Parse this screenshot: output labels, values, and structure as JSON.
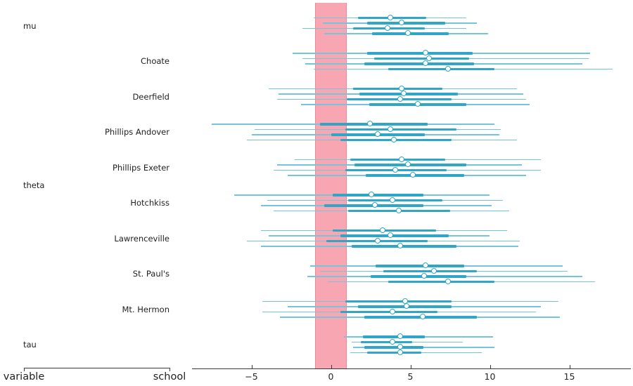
{
  "figure": {
    "background": "#ffffff"
  },
  "colors": {
    "hdi_line": "#74c5db",
    "iqr_line": "#2fa6c8",
    "median_marker_fill": "#ffffff",
    "median_marker_edge": "#2fa6c8",
    "rope_band": "#f7a6b2",
    "axis_line": "#3a3a3a",
    "text": "#1f1f1f"
  },
  "x_axis": {
    "range": [
      -8.7,
      18.9
    ],
    "ticks": [
      {
        "value": -5,
        "label": "−5"
      },
      {
        "value": 0,
        "label": "0"
      },
      {
        "value": 5,
        "label": "5"
      },
      {
        "value": 10,
        "label": "10"
      },
      {
        "value": 15,
        "label": "15"
      }
    ]
  },
  "category_axis": {
    "level1_label": "variable",
    "level2_label": "school"
  },
  "chart_data": {
    "type": "forest",
    "title": "",
    "rope": [
      -1,
      1
    ],
    "num_chains": 4,
    "interval_stats": [
      "interval_lo",
      "q1",
      "median",
      "q3",
      "interval_hi"
    ],
    "variables": [
      {
        "variable": "mu",
        "rows": [
          {
            "school": "",
            "chains": [
              [
                -1.1,
                1.7,
                3.8,
                6.0,
                8.5
              ],
              [
                -0.5,
                2.3,
                4.5,
                7.2,
                9.2
              ],
              [
                -1.8,
                1.4,
                3.6,
                5.9,
                8.5
              ],
              [
                -0.4,
                2.6,
                4.9,
                7.4,
                9.9
              ]
            ]
          }
        ]
      },
      {
        "variable": "theta",
        "rows": [
          {
            "school": "Choate",
            "chains": [
              [
                -2.4,
                2.3,
                6.0,
                8.9,
                16.3
              ],
              [
                -1.8,
                2.7,
                6.2,
                8.7,
                16.2
              ],
              [
                -1.6,
                2.1,
                6.0,
                9.0,
                15.8
              ],
              [
                -1.1,
                3.6,
                7.4,
                10.3,
                17.7
              ]
            ]
          },
          {
            "school": "Deerfield",
            "chains": [
              [
                -3.9,
                1.4,
                4.5,
                7.0,
                11.7
              ],
              [
                -3.3,
                1.8,
                4.6,
                8.0,
                12.1
              ],
              [
                -3.4,
                1.0,
                4.4,
                7.6,
                12.3
              ],
              [
                -1.9,
                2.4,
                5.5,
                8.5,
                12.5
              ]
            ]
          },
          {
            "school": "Phillips Andover",
            "chains": [
              [
                -7.5,
                -0.7,
                2.5,
                6.1,
                10.3
              ],
              [
                -4.8,
                0.9,
                3.8,
                7.9,
                10.7
              ],
              [
                -5.0,
                0.0,
                3.0,
                5.9,
                10.6
              ],
              [
                -5.3,
                0.6,
                4.0,
                7.6,
                11.7
              ]
            ]
          },
          {
            "school": "Phillips Exeter",
            "chains": [
              [
                -2.3,
                1.2,
                4.5,
                7.2,
                13.2
              ],
              [
                -3.4,
                1.5,
                4.9,
                8.5,
                12.0
              ],
              [
                -3.6,
                0.9,
                4.1,
                7.3,
                13.2
              ],
              [
                -2.7,
                2.2,
                5.2,
                8.4,
                12.3
              ]
            ]
          },
          {
            "school": "Hotchkiss",
            "chains": [
              [
                -6.1,
                0.1,
                2.6,
                5.8,
                10.0
              ],
              [
                -4.0,
                1.1,
                3.9,
                7.0,
                10.8
              ],
              [
                -4.4,
                -0.4,
                2.8,
                5.8,
                10.1
              ],
              [
                -3.6,
                1.1,
                4.3,
                7.5,
                11.2
              ]
            ]
          },
          {
            "school": "Lawrenceville",
            "chains": [
              [
                -4.4,
                0.1,
                3.3,
                6.6,
                11.1
              ],
              [
                -3.9,
                0.6,
                3.8,
                7.4,
                10.0
              ],
              [
                -5.3,
                -0.3,
                3.0,
                6.1,
                11.9
              ],
              [
                -4.4,
                1.3,
                4.4,
                7.9,
                11.8
              ]
            ]
          },
          {
            "school": "St. Paul's",
            "chains": [
              [
                -1.3,
                2.8,
                6.0,
                8.4,
                14.6
              ],
              [
                -0.7,
                3.3,
                6.5,
                9.2,
                14.9
              ],
              [
                -1.5,
                2.5,
                5.9,
                8.5,
                15.8
              ],
              [
                -0.2,
                3.6,
                7.4,
                10.3,
                16.6
              ]
            ]
          },
          {
            "school": "Mt. Hermon",
            "chains": [
              [
                -4.3,
                0.9,
                4.7,
                7.6,
                14.3
              ],
              [
                -2.7,
                1.7,
                4.8,
                7.6,
                13.2
              ],
              [
                -4.3,
                0.6,
                3.9,
                6.7,
                12.9
              ],
              [
                -3.2,
                2.1,
                5.8,
                9.2,
                14.4
              ]
            ]
          }
        ]
      },
      {
        "variable": "tau",
        "rows": [
          {
            "school": "",
            "chains": [
              [
                0.8,
                2.0,
                4.4,
                5.9,
                10.2
              ],
              [
                1.3,
                1.9,
                3.9,
                5.1,
                8.3
              ],
              [
                1.4,
                2.1,
                4.4,
                5.8,
                10.3
              ],
              [
                1.2,
                2.3,
                4.4,
                5.7,
                9.5
              ]
            ]
          }
        ]
      }
    ]
  }
}
